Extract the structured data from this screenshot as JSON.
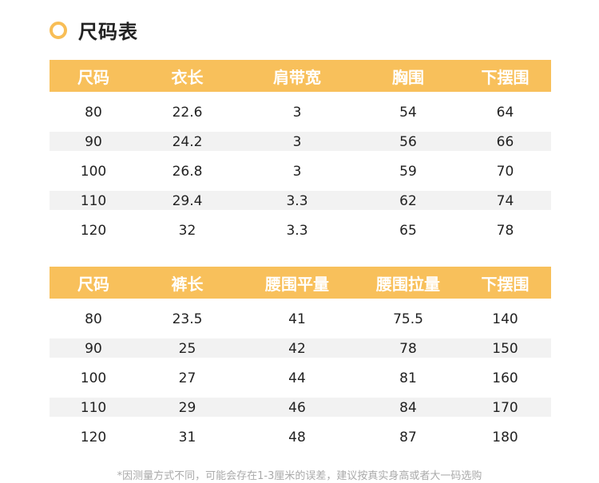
{
  "title": "尺码表",
  "accent": "#f8c05b",
  "table1": {
    "headers": [
      "尺码",
      "衣长",
      "肩带宽",
      "胸围",
      "下摆围"
    ],
    "rows": [
      [
        "80",
        "22.6",
        "3",
        "54",
        "64"
      ],
      [
        "90",
        "24.2",
        "3",
        "56",
        "66"
      ],
      [
        "100",
        "26.8",
        "3",
        "59",
        "70"
      ],
      [
        "110",
        "29.4",
        "3.3",
        "62",
        "74"
      ],
      [
        "120",
        "32",
        "3.3",
        "65",
        "78"
      ]
    ]
  },
  "table2": {
    "headers": [
      "尺码",
      "裤长",
      "腰围平量",
      "腰围拉量",
      "下摆围"
    ],
    "rows": [
      [
        "80",
        "23.5",
        "41",
        "75.5",
        "140"
      ],
      [
        "90",
        "25",
        "42",
        "78",
        "150"
      ],
      [
        "100",
        "27",
        "44",
        "81",
        "160"
      ],
      [
        "110",
        "29",
        "46",
        "84",
        "170"
      ],
      [
        "120",
        "31",
        "48",
        "87",
        "180"
      ]
    ]
  },
  "note": "*因测量方式不同，可能会存在1-3厘米的误差，建议按真实身高或者大一码选购"
}
